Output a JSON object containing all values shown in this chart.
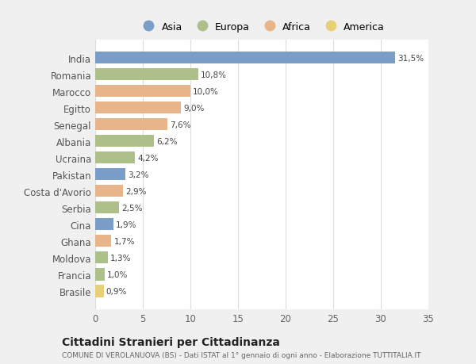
{
  "countries": [
    "India",
    "Romania",
    "Marocco",
    "Egitto",
    "Senegal",
    "Albania",
    "Ucraina",
    "Pakistan",
    "Costa d'Avorio",
    "Serbia",
    "Cina",
    "Ghana",
    "Moldova",
    "Francia",
    "Brasile"
  ],
  "values": [
    31.5,
    10.8,
    10.0,
    9.0,
    7.6,
    6.2,
    4.2,
    3.2,
    2.9,
    2.5,
    1.9,
    1.7,
    1.3,
    1.0,
    0.9
  ],
  "labels": [
    "31,5%",
    "10,8%",
    "10,0%",
    "9,0%",
    "7,6%",
    "6,2%",
    "4,2%",
    "3,2%",
    "2,9%",
    "2,5%",
    "1,9%",
    "1,7%",
    "1,3%",
    "1,0%",
    "0,9%"
  ],
  "continents": [
    "Asia",
    "Europa",
    "Africa",
    "Africa",
    "Africa",
    "Europa",
    "Europa",
    "Asia",
    "Africa",
    "Europa",
    "Asia",
    "Africa",
    "Europa",
    "Europa",
    "America"
  ],
  "continent_colors": {
    "Asia": "#7b9ec8",
    "Europa": "#adc08a",
    "Africa": "#e8b48a",
    "America": "#e8d078"
  },
  "legend_items": [
    "Asia",
    "Europa",
    "Africa",
    "America"
  ],
  "legend_colors": [
    "#7b9ec8",
    "#adc08a",
    "#e8b48a",
    "#e8d078"
  ],
  "xlim": [
    0,
    35
  ],
  "xticks": [
    0,
    5,
    10,
    15,
    20,
    25,
    30,
    35
  ],
  "title": "Cittadini Stranieri per Cittadinanza",
  "subtitle": "COMUNE DI VEROLANUOVA (BS) - Dati ISTAT al 1° gennaio di ogni anno - Elaborazione TUTTITALIA.IT",
  "fig_bg": "#f0f0f0",
  "plot_bg": "#ffffff",
  "grid_color": "#dddddd",
  "label_color": "#666666",
  "ytick_color": "#555555"
}
